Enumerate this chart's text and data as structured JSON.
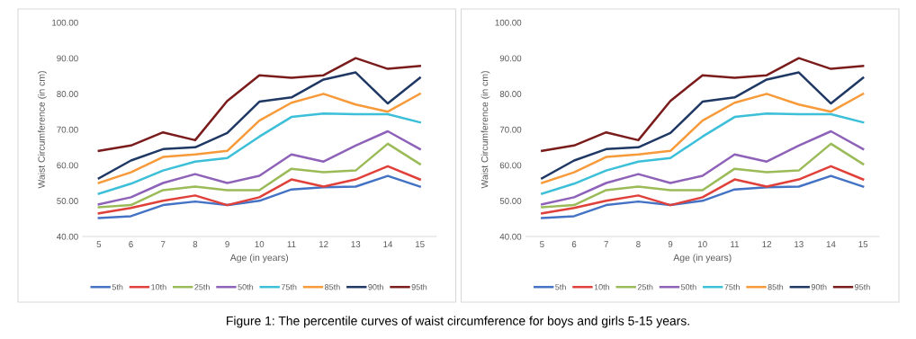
{
  "chart_data": [
    {
      "type": "line",
      "xlabel": "Age (in years)",
      "ylabel": "Waist Circumference (in cm)",
      "categories": [
        "5",
        "6",
        "7",
        "8",
        "9",
        "10",
        "11",
        "12",
        "13",
        "14",
        "15"
      ],
      "ylim": [
        40,
        100
      ],
      "yticks": [
        {
          "value": 40,
          "label": "40.00"
        },
        {
          "value": 50,
          "label": "50.00"
        },
        {
          "value": 60,
          "label": "60.00"
        },
        {
          "value": 70,
          "label": "70.00"
        },
        {
          "value": 80,
          "label": "80.00"
        },
        {
          "value": 90,
          "label": "90.00"
        },
        {
          "value": 100,
          "label": "100.00"
        }
      ],
      "grid": false,
      "legend": "bottom",
      "marker": "none",
      "line_style": "solid",
      "series": [
        {
          "name": "5th",
          "color": "#4472c4",
          "values": [
            45.2,
            45.7,
            48.8,
            49.8,
            48.8,
            50.0,
            53.2,
            53.8,
            54.0,
            57.0,
            54.0
          ]
        },
        {
          "name": "10th",
          "color": "#e0403a",
          "values": [
            46.5,
            48.0,
            50.0,
            51.5,
            48.8,
            51.0,
            56.0,
            54.0,
            56.0,
            59.7,
            56.0
          ]
        },
        {
          "name": "25th",
          "color": "#9bbb59",
          "values": [
            48.2,
            48.8,
            53.0,
            54.0,
            53.0,
            53.0,
            59.0,
            58.0,
            58.5,
            66.0,
            60.3
          ]
        },
        {
          "name": "50th",
          "color": "#8e62b8",
          "values": [
            49.0,
            51.0,
            55.0,
            57.5,
            55.0,
            57.0,
            63.0,
            61.0,
            65.5,
            69.5,
            64.5
          ]
        },
        {
          "name": "75th",
          "color": "#3cbfd8",
          "values": [
            52.0,
            54.8,
            58.5,
            61.0,
            62.0,
            68.0,
            73.5,
            74.5,
            74.3,
            74.3,
            72.0
          ]
        },
        {
          "name": "85th",
          "color": "#f79a3a",
          "values": [
            55.0,
            58.0,
            62.3,
            63.0,
            64.0,
            72.5,
            77.5,
            80.0,
            77.0,
            75.0,
            80.0
          ]
        },
        {
          "name": "90th",
          "color": "#1f3864",
          "values": [
            56.3,
            61.3,
            64.5,
            65.0,
            69.0,
            77.8,
            79.0,
            84.0,
            86.0,
            77.3,
            84.5
          ]
        },
        {
          "name": "95th",
          "color": "#7b1c1c",
          "values": [
            64.0,
            65.5,
            69.2,
            67.0,
            78.0,
            85.2,
            84.5,
            85.2,
            90.0,
            87.0,
            87.8
          ]
        }
      ],
      "annotations": [
        "Figure 1: The percentile curves of waist circumference for boys and girls 5-15 years."
      ]
    },
    {
      "type": "line",
      "xlabel": "Age (in years)",
      "ylabel": "Waist Circumference (in cm)",
      "categories": [
        "5",
        "6",
        "7",
        "8",
        "9",
        "10",
        "11",
        "12",
        "13",
        "14",
        "15"
      ],
      "ylim": [
        40,
        100
      ],
      "yticks": [
        {
          "value": 40,
          "label": "40.00"
        },
        {
          "value": 50,
          "label": "50.00"
        },
        {
          "value": 60,
          "label": "60.00"
        },
        {
          "value": 70,
          "label": "70.00"
        },
        {
          "value": 80,
          "label": "80.00"
        },
        {
          "value": 90,
          "label": "90.00"
        },
        {
          "value": 100,
          "label": "100.00"
        }
      ],
      "grid": false,
      "legend": "bottom",
      "marker": "none",
      "line_style": "solid",
      "series": [
        {
          "name": "5th",
          "color": "#4472c4",
          "values": [
            45.2,
            45.7,
            48.8,
            49.8,
            48.8,
            50.0,
            53.2,
            53.8,
            54.0,
            57.0,
            54.0
          ]
        },
        {
          "name": "10th",
          "color": "#e0403a",
          "values": [
            46.5,
            48.0,
            50.0,
            51.5,
            48.8,
            51.0,
            56.0,
            54.0,
            56.0,
            59.7,
            56.0
          ]
        },
        {
          "name": "25th",
          "color": "#9bbb59",
          "values": [
            48.2,
            48.8,
            53.0,
            54.0,
            53.0,
            53.0,
            59.0,
            58.0,
            58.5,
            66.0,
            60.3
          ]
        },
        {
          "name": "50th",
          "color": "#8e62b8",
          "values": [
            49.0,
            51.0,
            55.0,
            57.5,
            55.0,
            57.0,
            63.0,
            61.0,
            65.5,
            69.5,
            64.5
          ]
        },
        {
          "name": "75th",
          "color": "#3cbfd8",
          "values": [
            52.0,
            54.8,
            58.5,
            61.0,
            62.0,
            68.0,
            73.5,
            74.5,
            74.3,
            74.3,
            72.0
          ]
        },
        {
          "name": "85th",
          "color": "#f79a3a",
          "values": [
            55.0,
            58.0,
            62.3,
            63.0,
            64.0,
            72.5,
            77.5,
            80.0,
            77.0,
            75.0,
            80.0
          ]
        },
        {
          "name": "90th",
          "color": "#1f3864",
          "values": [
            56.3,
            61.3,
            64.5,
            65.0,
            69.0,
            77.8,
            79.0,
            84.0,
            86.0,
            77.3,
            84.5
          ]
        },
        {
          "name": "95th",
          "color": "#7b1c1c",
          "values": [
            64.0,
            65.5,
            69.2,
            67.0,
            78.0,
            85.2,
            84.5,
            85.2,
            90.0,
            87.0,
            87.8
          ]
        }
      ]
    }
  ]
}
